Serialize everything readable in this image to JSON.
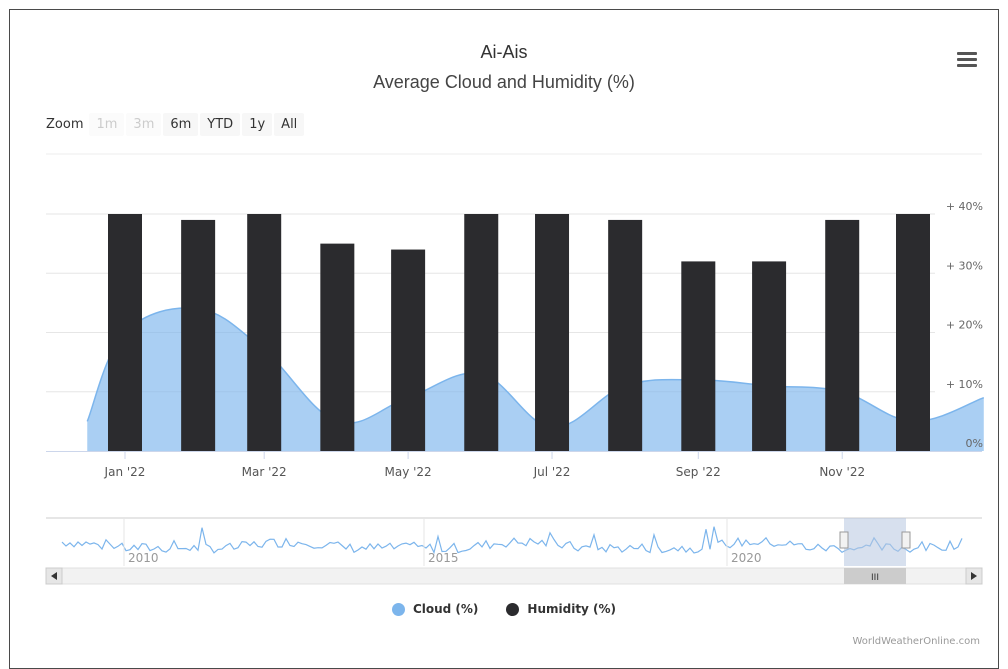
{
  "header": {
    "title": "Ai-Ais",
    "subtitle": "Average Cloud and Humidity (%)",
    "menu_icon": "hamburger-menu-icon"
  },
  "zoom": {
    "label": "Zoom",
    "buttons": [
      {
        "label": "1m",
        "enabled": false
      },
      {
        "label": "3m",
        "enabled": false
      },
      {
        "label": "6m",
        "enabled": true
      },
      {
        "label": "YTD",
        "enabled": true
      },
      {
        "label": "1y",
        "enabled": true
      },
      {
        "label": "All",
        "enabled": true
      }
    ]
  },
  "navigator": {
    "year_labels": [
      "2010",
      "2015",
      "2020"
    ],
    "scroll_grip": "III"
  },
  "legend": {
    "items": [
      {
        "label": "Cloud (%)",
        "color": "#7cb5ec"
      },
      {
        "label": "Humidity (%)",
        "color": "#2b2b2e"
      }
    ]
  },
  "credit": "WorldWeatherOnline.com",
  "chart_data": {
    "type": "bar",
    "title": "Ai-Ais",
    "subtitle": "Average Cloud and Humidity (%)",
    "x_tick_labels": [
      "Jan '22",
      "Mar '22",
      "May '22",
      "Jul '22",
      "Sep '22",
      "Nov '22"
    ],
    "y_tick_labels": [
      "0%",
      "10%",
      "20%",
      "30%",
      "40%"
    ],
    "ylim": [
      0,
      40
    ],
    "grid": true,
    "legend_position": "bottom",
    "categories": [
      "Jan 2022",
      "Feb 2022",
      "Mar 2022",
      "Apr 2022",
      "May 2022",
      "Jun 2022",
      "Jul 2022",
      "Aug 2022",
      "Sep 2022",
      "Oct 2022",
      "Nov 2022",
      "Dec 2022"
    ],
    "series": [
      {
        "name": "Humidity (%)",
        "type": "column",
        "color": "#2b2b2e",
        "values": [
          40,
          39,
          40,
          35,
          34,
          40,
          40,
          39,
          32,
          32,
          39,
          40
        ]
      },
      {
        "name": "Cloud (%)",
        "type": "area",
        "color": "#7cb5ec",
        "points": [
          [
            "Dec 16 2021",
            5
          ],
          [
            "Jan 2022",
            20
          ],
          [
            "Feb 2022",
            24
          ],
          [
            "Mar 2022",
            17
          ],
          [
            "Apr 2022",
            5
          ],
          [
            "May 2022",
            9
          ],
          [
            "Jun 2022",
            13
          ],
          [
            "Jul 2022",
            4
          ],
          [
            "Aug 2022",
            11
          ],
          [
            "Sep 2022",
            12
          ],
          [
            "Oct 2022",
            11
          ],
          [
            "Nov 2022",
            10
          ],
          [
            "Dec 2022",
            5
          ],
          [
            "Dec 31 2022",
            9
          ]
        ]
      }
    ]
  }
}
